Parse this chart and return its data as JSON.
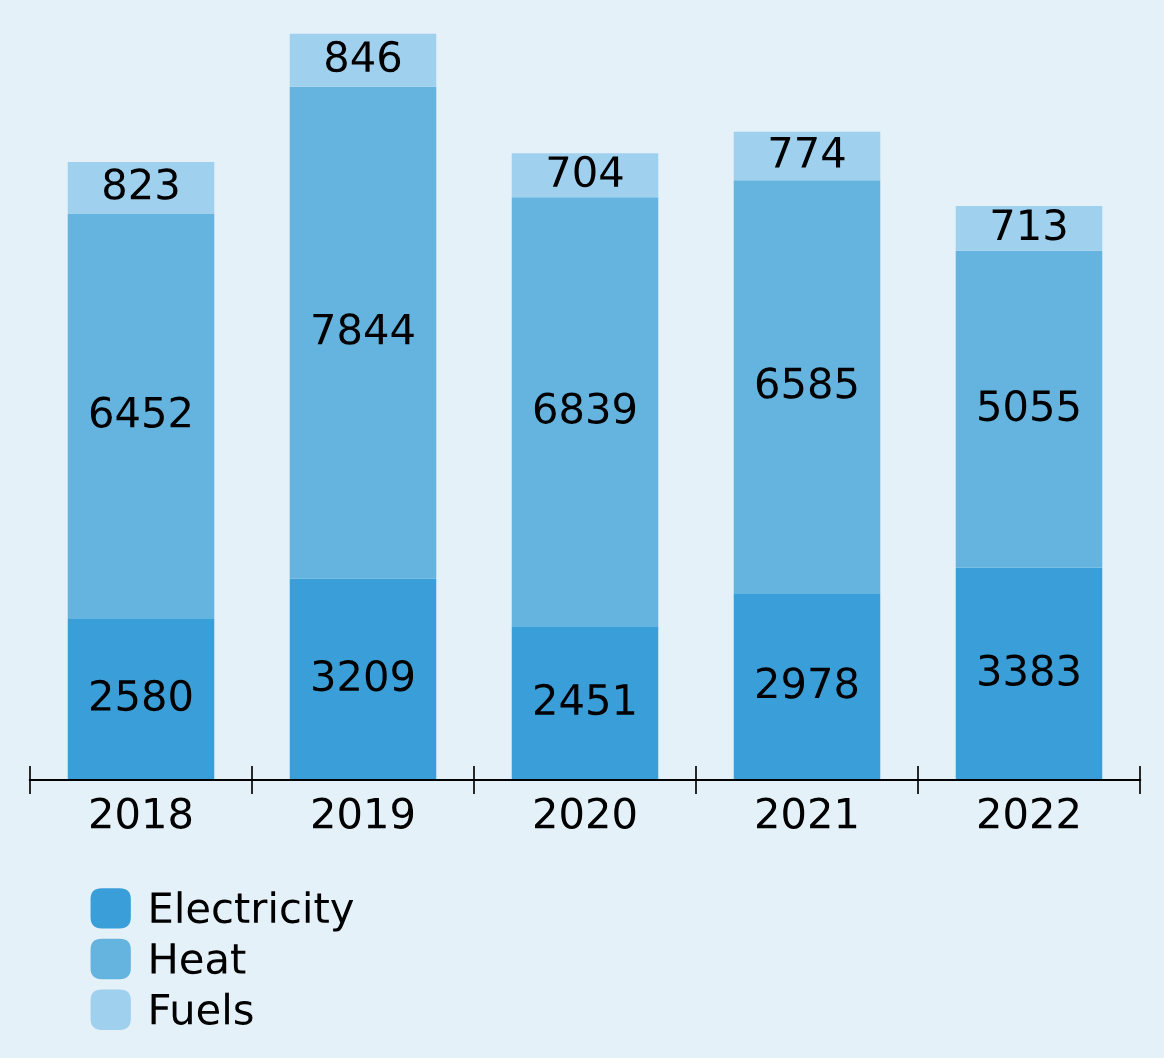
{
  "chart_data": {
    "type": "bar",
    "stacked": true,
    "data_labels": true,
    "legend": "bottom left",
    "grid": false,
    "categories": [
      "2018",
      "2019",
      "2020",
      "2021",
      "2022"
    ],
    "series": [
      {
        "name": "Electricity",
        "color": "#3a9fd8",
        "values": [
          2580,
          3209,
          2451,
          2978,
          3383
        ]
      },
      {
        "name": "Heat",
        "color": "#64b4df",
        "values": [
          6452,
          7844,
          6839,
          6585,
          5055
        ]
      },
      {
        "name": "Fuels",
        "color": "#9fd0ee",
        "values": [
          823,
          846,
          704,
          774,
          713
        ]
      }
    ]
  }
}
